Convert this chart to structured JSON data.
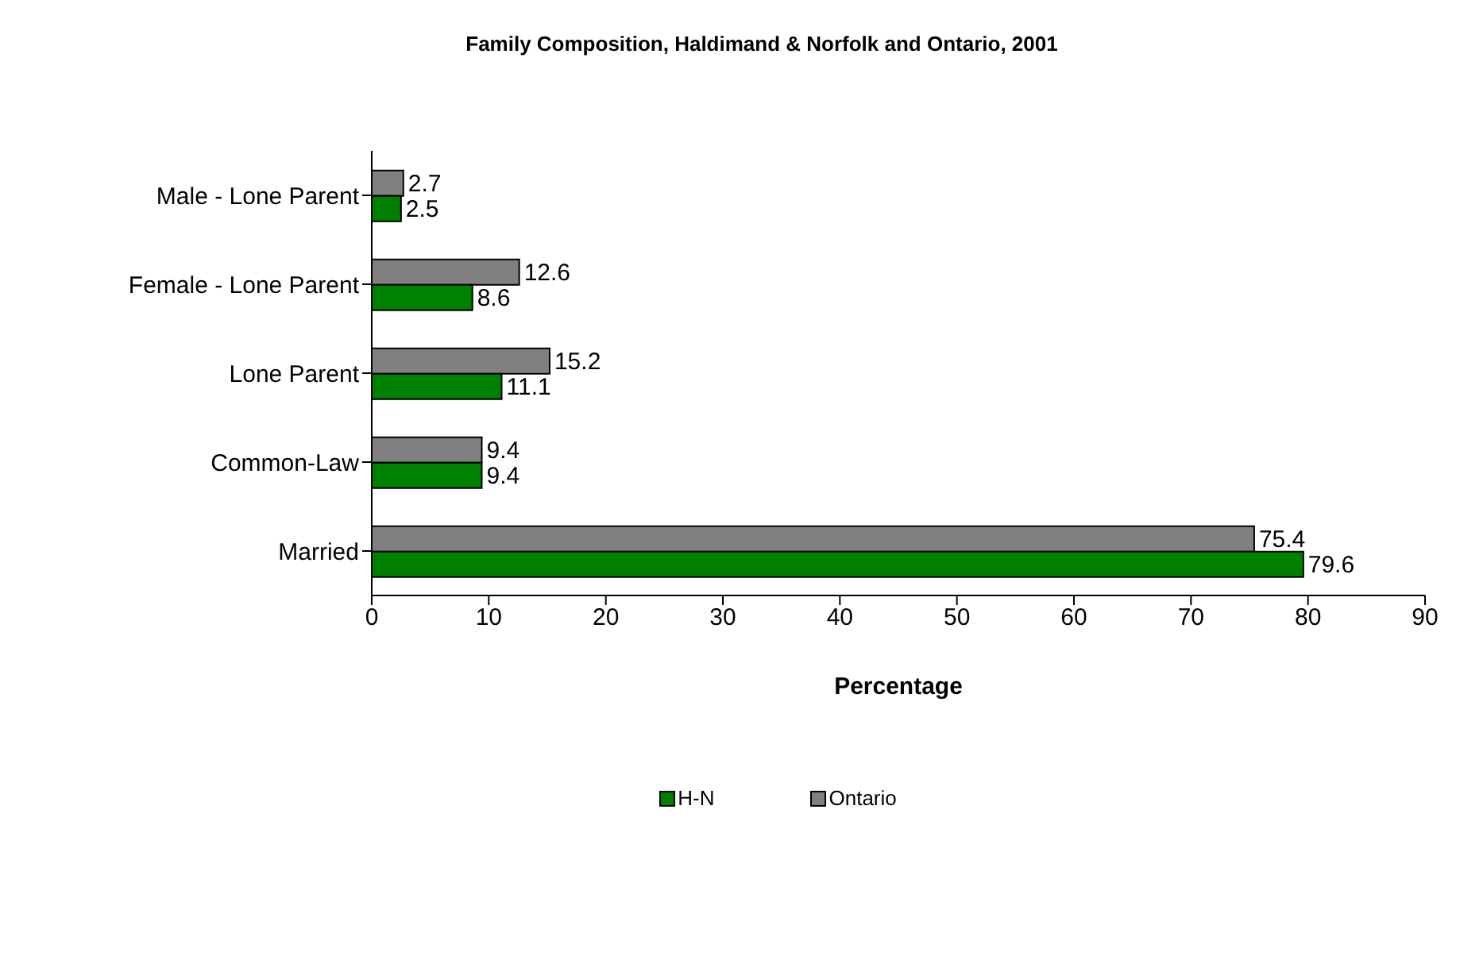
{
  "chart_data": {
    "type": "bar",
    "orientation": "horizontal",
    "title": "Family Composition, Haldimand & Norfolk and Ontario, 2001",
    "xlabel": "Percentage",
    "categories": [
      "Male - Lone Parent",
      "Female - Lone Parent",
      "Lone Parent",
      "Common-Law",
      "Married"
    ],
    "series": [
      {
        "name": "H-N",
        "color": "#008000",
        "values": [
          2.5,
          8.6,
          11.1,
          9.4,
          79.6
        ]
      },
      {
        "name": "Ontario",
        "color": "#808080",
        "values": [
          2.7,
          12.6,
          15.2,
          9.4,
          75.4
        ]
      }
    ],
    "xlim": [
      0,
      90
    ],
    "xticks": [
      0,
      10,
      20,
      30,
      40,
      50,
      60,
      70,
      80,
      90
    ],
    "data_labels": true,
    "grid": false,
    "legend": "bottom"
  }
}
